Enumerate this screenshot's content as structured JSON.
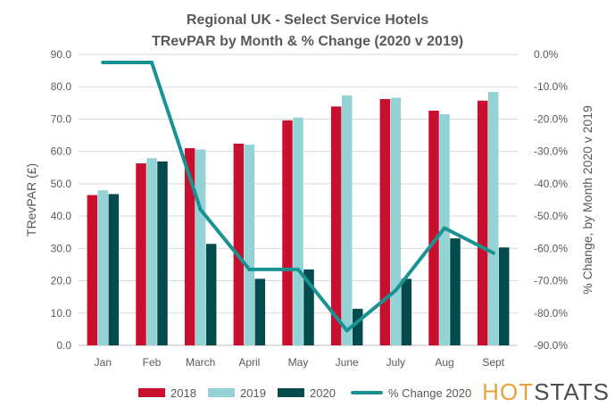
{
  "title_line1": "Regional UK - Select Service Hotels",
  "title_line2": "TRevPAR by Month & % Change (2020 v 2019)",
  "logo": {
    "part1": "HOT",
    "part2": "STATS"
  },
  "colors": {
    "s2018": "#c8102e",
    "s2019": "#93d3d6",
    "s2020": "#034b4d",
    "change": "#199292",
    "axis_text": "#595959",
    "grid": "#d9d9d9"
  },
  "chart_data": {
    "type": "bar+line",
    "categories": [
      "Jan",
      "Feb",
      "March",
      "April",
      "May",
      "June",
      "July",
      "Aug",
      "Sept"
    ],
    "series": [
      {
        "name": "2018",
        "axis": "left",
        "values": [
          46.5,
          56.3,
          61.0,
          62.4,
          69.6,
          73.9,
          76.2,
          72.6,
          75.7
        ]
      },
      {
        "name": "2019",
        "axis": "left",
        "values": [
          48.0,
          57.9,
          60.6,
          62.1,
          70.5,
          77.3,
          76.6,
          71.5,
          78.4
        ]
      },
      {
        "name": "2020",
        "axis": "left",
        "values": [
          46.8,
          56.9,
          31.4,
          20.6,
          23.5,
          11.3,
          20.6,
          33.1,
          30.3
        ]
      },
      {
        "name": "% Change 2020",
        "axis": "right",
        "type": "line",
        "values": [
          -2.5,
          -2.5,
          -48.0,
          -66.5,
          -66.5,
          -85.4,
          -73.0,
          -53.7,
          -61.4
        ]
      }
    ],
    "ylabel": "TRevPAR (£)",
    "ylabel_right": "% Change, by Month 2020 v 2019",
    "ylim": [
      0,
      90
    ],
    "yticks": [
      "0.0",
      "10.0",
      "20.0",
      "30.0",
      "40.0",
      "50.0",
      "60.0",
      "70.0",
      "80.0",
      "90.0"
    ],
    "ylim_right": [
      -90,
      0
    ],
    "yticks_right": [
      "-90.0%",
      "-80.0%",
      "-70.0%",
      "-60.0%",
      "-50.0%",
      "-40.0%",
      "-30.0%",
      "-20.0%",
      "-10.0%",
      "0.0%"
    ],
    "legend": {
      "position": "bottom",
      "items": [
        {
          "label": "2018",
          "kind": "box"
        },
        {
          "label": "2019",
          "kind": "box"
        },
        {
          "label": "2020",
          "kind": "box"
        },
        {
          "label": "% Change 2020",
          "kind": "line"
        }
      ]
    }
  }
}
